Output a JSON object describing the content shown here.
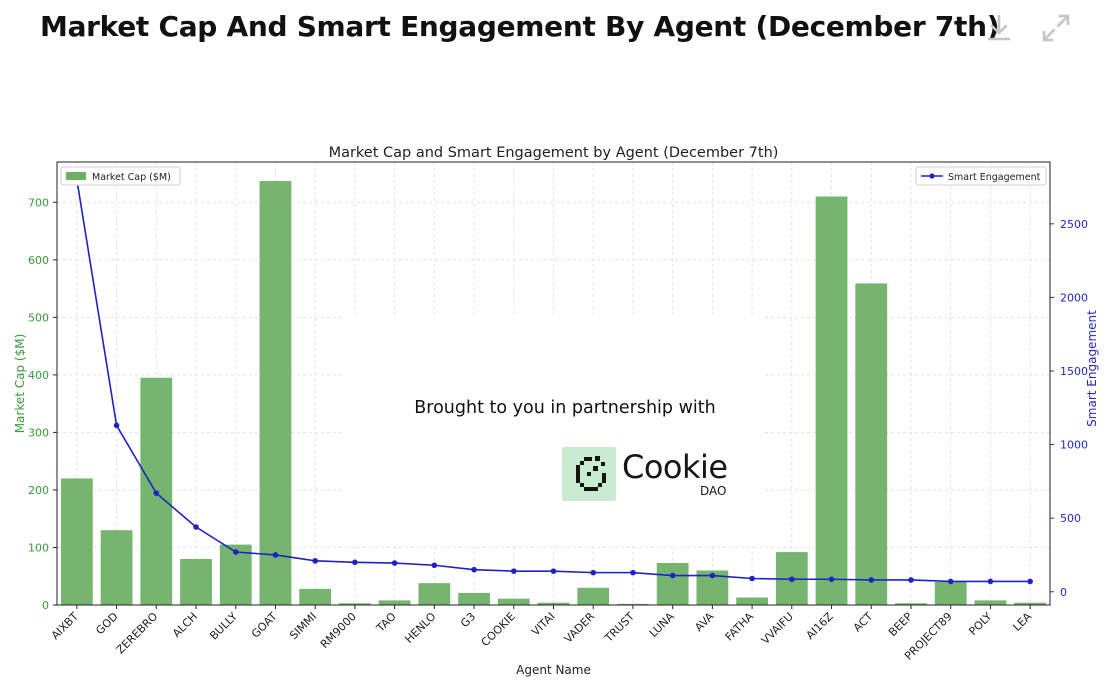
{
  "header": {
    "title": "Market Cap And Smart Engagement By Agent (December 7th)",
    "download_icon": "download-icon",
    "expand_icon": "expand-icon"
  },
  "branding": {
    "tagline": "Brought to you in partnership with",
    "name": "Cookie",
    "sub": "DAO",
    "logo_bg": "#c9ecd1"
  },
  "colors": {
    "bars": "#6aaf63",
    "line": "#1f22c2",
    "left_axis": "#3a9a3a",
    "right_axis": "#2626c8"
  },
  "chart_data": {
    "type": "bar",
    "title": "Market Cap and Smart Engagement by Agent (December 7th)",
    "xlabel": "Agent Name",
    "ylabel": "Market Cap ($M)",
    "y2label": "Smart Engagement",
    "ylim": [
      0,
      770
    ],
    "y2lim": [
      -90,
      2920
    ],
    "yticks": [
      0,
      100,
      200,
      300,
      400,
      500,
      600,
      700
    ],
    "y2ticks": [
      0,
      500,
      1000,
      1500,
      2000,
      2500
    ],
    "grid": true,
    "categories": [
      "AIXBT",
      "GOD",
      "ZEREBRO",
      "ALCH",
      "BULLY",
      "GOAT",
      "SIMMI",
      "RM9000",
      "TAO",
      "HENLO",
      "G3",
      "COOKIE",
      "VITAI",
      "VADER",
      "TRUST",
      "LUNA",
      "AVA",
      "FATHA",
      "VVAIFU",
      "AI16Z",
      "ACT",
      "BEEP",
      "PROJECT89",
      "POLY",
      "LEA"
    ],
    "series": [
      {
        "name": "Market Cap ($M)",
        "type": "bar",
        "axis": "left",
        "legend": "top-left",
        "values": [
          220,
          130,
          395,
          80,
          105,
          737,
          28,
          3,
          8,
          38,
          21,
          11,
          4,
          30,
          2,
          73,
          60,
          13,
          92,
          710,
          559,
          3,
          40,
          8,
          4
        ]
      },
      {
        "name": "Smart Engagement",
        "type": "line",
        "axis": "right",
        "legend": "top-right",
        "values": [
          2800,
          1130,
          670,
          440,
          270,
          250,
          210,
          200,
          195,
          180,
          150,
          140,
          140,
          130,
          130,
          110,
          110,
          90,
          85,
          85,
          80,
          80,
          70,
          70,
          70
        ]
      }
    ]
  }
}
